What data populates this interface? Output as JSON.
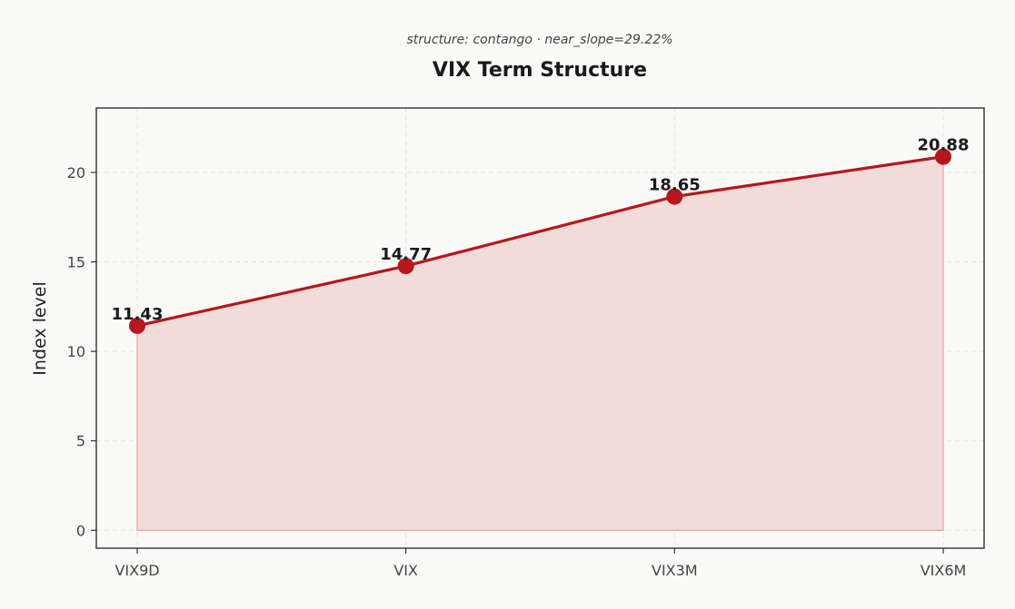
{
  "chart_data": {
    "type": "line",
    "subtitle": "structure: contango · near_slope=29.22%",
    "title": "VIX Term Structure",
    "xlabel": "",
    "ylabel": "Index level",
    "categories": [
      "VIX9D",
      "VIX",
      "VIX3M",
      "VIX6M"
    ],
    "series": [
      {
        "values": [
          11.43,
          14.77,
          18.65,
          20.88
        ],
        "labels": [
          "11.43",
          "14.77",
          "18.65",
          "20.88"
        ]
      }
    ],
    "ylim": [
      -1,
      23.6
    ],
    "yticks": [
      0,
      5,
      10,
      15,
      20
    ],
    "grid": true,
    "fill_area": true,
    "colors": {
      "line": "#b5171c",
      "marker": "#b5171c",
      "fill": "#f2dcda",
      "fill_edge": "#e0b3b1",
      "frame": "#333333"
    }
  }
}
